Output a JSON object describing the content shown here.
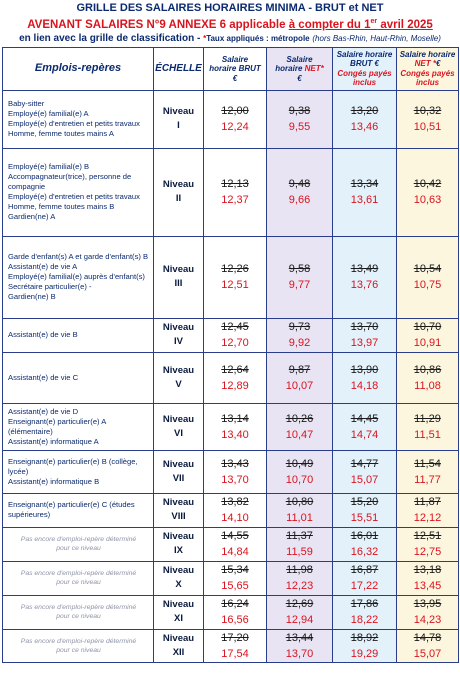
{
  "header": {
    "title": "GRILLE DES SALAIRES HORAIRES MINIMA - BRUT et NET",
    "subtitle_prefix": "AVENANT SALAIRES N°9 ANNEXE 6 applicable ",
    "subtitle_date_a": "à compter du 1",
    "subtitle_date_sup": "er",
    "subtitle_date_b": " avril 2025",
    "line3_main": "en lien avec la grille de classification - ",
    "line3_star": "*",
    "line3_note": "Taux appliqués : métropole",
    "line3_italic": "(hors Bas-Rhin, Haut-Rhin, Moselle)"
  },
  "columns": {
    "emplois": "Emplois-repères",
    "echelle": "ÉCHELLE",
    "brut_a": "Salaire",
    "brut_b": "horaire BRUT",
    "brut_c": "€",
    "net_a": "Salaire",
    "net_b": "horaire ",
    "net_red": "NET*",
    "net_c": "€",
    "cp_a": "Salaire horaire",
    "cp_b": "BRUT €",
    "cp_red": "Congés payés",
    "cp_c": "inclus",
    "netcp_a": "Salaire horaire",
    "netcp_red": "NET *",
    "netcp_b": "€",
    "netcp_red2": "Congés payés",
    "netcp_c": "inclus"
  },
  "rows": [
    {
      "emplois": [
        "Baby-sitter",
        "Employé(e) familial(e) A",
        "Employé(e) d'entretien et petits travaux",
        "Homme, femme toutes mains A"
      ],
      "niveau_a": "Niveau",
      "niveau_b": "I",
      "brut_old": "12,00",
      "brut_new": "12,24",
      "net_old": "9,38",
      "net_new": "9,55",
      "cp_old": "13,20",
      "cp_new": "13,46",
      "netcp_old": "10,32",
      "netcp_new": "10,51"
    },
    {
      "emplois": [
        "Employé(e) familial(e) B",
        "Accompagnateur(trice), personne de compagnie",
        "Employé(e) d'entretien et petits travaux",
        "Homme, femme toutes mains B",
        "Gardien(ne) A"
      ],
      "niveau_a": "Niveau",
      "niveau_b": "II",
      "brut_old": "12,13",
      "brut_new": "12,37",
      "net_old": "9,48",
      "net_new": "9,66",
      "cp_old": "13,34",
      "cp_new": "13,61",
      "netcp_old": "10,42",
      "netcp_new": "10,63"
    },
    {
      "emplois": [
        "Garde d'enfant(s) A et garde d'enfant(s) B",
        "Assistant(e) de vie A",
        "Employé(e) familial(e) auprès d'enfant(s)",
        "Secrétaire particulier(e) -",
        "Gardien(ne) B"
      ],
      "niveau_a": "Niveau",
      "niveau_b": "III",
      "brut_old": "12,26",
      "brut_new": "12,51",
      "net_old": "9,58",
      "net_new": "9,77",
      "cp_old": "13,49",
      "cp_new": "13,76",
      "netcp_old": "10,54",
      "netcp_new": "10,75"
    },
    {
      "emplois": [
        "Assistant(e) de vie B"
      ],
      "niveau_a": "Niveau",
      "niveau_b": "IV",
      "brut_old": "12,45",
      "brut_new": "12,70",
      "net_old": "9,73",
      "net_new": "9,92",
      "cp_old": "13,70",
      "cp_new": "13,97",
      "netcp_old": "10,70",
      "netcp_new": "10,91"
    },
    {
      "emplois": [
        "Assistant(e) de vie C"
      ],
      "niveau_a": "Niveau",
      "niveau_b": "V",
      "brut_old": "12,64",
      "brut_new": "12,89",
      "net_old": "9,87",
      "net_new": "10,07",
      "cp_old": "13,90",
      "cp_new": "14,18",
      "netcp_old": "10,86",
      "netcp_new": "11,08"
    },
    {
      "emplois": [
        "Assistant(e) de vie D",
        "Enseignant(e) particulier(e) A (élémentaire)",
        "Assistant(e) informatique A"
      ],
      "niveau_a": "Niveau",
      "niveau_b": "VI",
      "brut_old": "13,14",
      "brut_new": "13,40",
      "net_old": "10,26",
      "net_new": "10,47",
      "cp_old": "14,45",
      "cp_new": "14,74",
      "netcp_old": "11,29",
      "netcp_new": "11,51"
    },
    {
      "emplois": [
        "Enseignant(e) particulier(e) B (collège, lycée)",
        "Assistant(e) informatique B"
      ],
      "niveau_a": "Niveau",
      "niveau_b": "VII",
      "brut_old": "13,43",
      "brut_new": "13,70",
      "net_old": "10,49",
      "net_new": "10,70",
      "cp_old": "14,77",
      "cp_new": "15,07",
      "netcp_old": "11,54",
      "netcp_new": "11,77"
    },
    {
      "emplois": [
        "Enseignant(e) particulier(e) C (études supérieures)"
      ],
      "niveau_a": "Niveau",
      "niveau_b": "VIII",
      "brut_old": "13,82",
      "brut_new": "14,10",
      "net_old": "10,80",
      "net_new": "11,01",
      "cp_old": "15,20",
      "cp_new": "15,51",
      "netcp_old": "11,87",
      "netcp_new": "12,12"
    },
    {
      "emplois": [
        "Pas encore d'emploi-repère déterminé",
        "pour ce niveau"
      ],
      "pending": true,
      "niveau_a": "Niveau",
      "niveau_b": "IX",
      "brut_old": "14,55",
      "brut_new": "14,84",
      "net_old": "11,37",
      "net_new": "11,59",
      "cp_old": "16,01",
      "cp_new": "16,32",
      "netcp_old": "12,51",
      "netcp_new": "12,75"
    },
    {
      "emplois": [
        "Pas encore d'emploi-repère déterminé",
        "pour ce niveau"
      ],
      "pending": true,
      "niveau_a": "Niveau",
      "niveau_b": "X",
      "brut_old": "15,34",
      "brut_new": "15,65",
      "net_old": "11,98",
      "net_new": "12,23",
      "cp_old": "16,87",
      "cp_new": "17,22",
      "netcp_old": "13,18",
      "netcp_new": "13,45"
    },
    {
      "emplois": [
        "Pas encore d'emploi-repère déterminé",
        "pour ce niveau"
      ],
      "pending": true,
      "niveau_a": "Niveau",
      "niveau_b": "XI",
      "brut_old": "16,24",
      "brut_new": "16,56",
      "net_old": "12,69",
      "net_new": "12,94",
      "cp_old": "17,86",
      "cp_new": "18,22",
      "netcp_old": "13,95",
      "netcp_new": "14,23"
    },
    {
      "emplois": [
        "Pas encore d'emploi-repère déterminé",
        "pour ce niveau"
      ],
      "pending": true,
      "niveau_a": "Niveau",
      "niveau_b": "XII",
      "brut_old": "17,20",
      "brut_new": "17,54",
      "net_old": "13,44",
      "net_new": "13,70",
      "cp_old": "18,92",
      "cp_new": "19,29",
      "netcp_old": "14,78",
      "netcp_new": "15,07"
    }
  ]
}
